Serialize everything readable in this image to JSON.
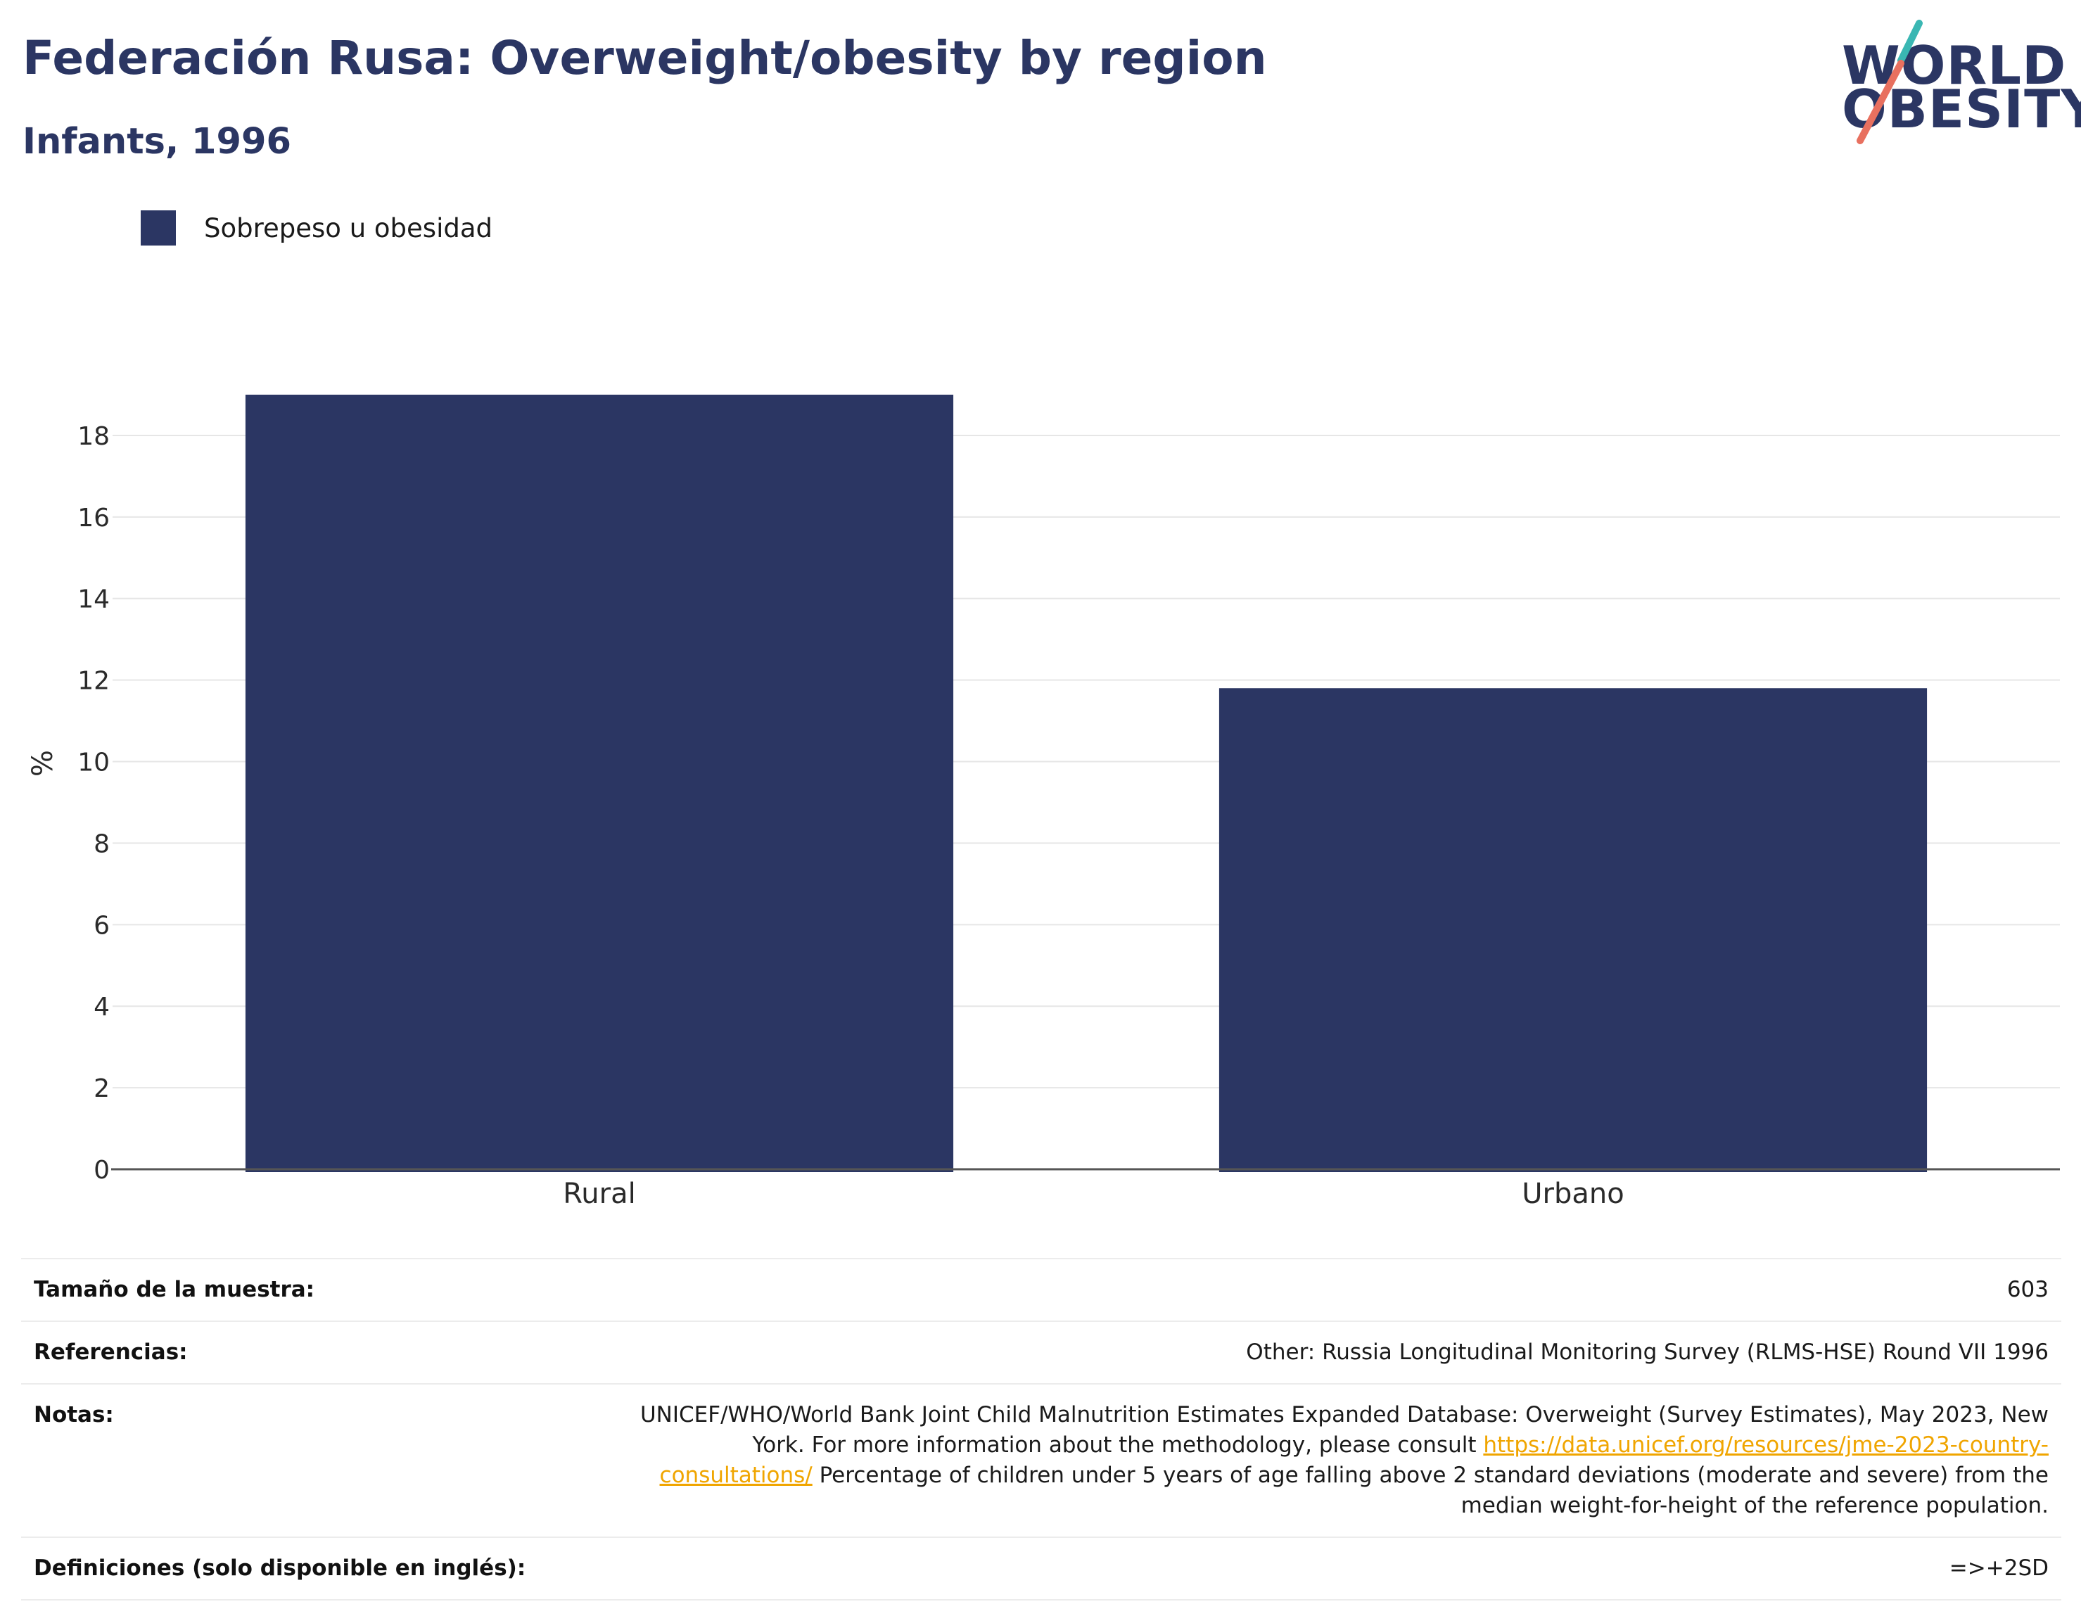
{
  "header": {
    "title": "Federación Rusa: Overweight/obesity by region",
    "subtitle": "Infants, 1996"
  },
  "logo": {
    "line1": "WORLD",
    "line2": "OBESITY",
    "colors": {
      "text": "#2b3663",
      "accent_teal": "#3ab7b3",
      "accent_coral": "#e8705f"
    }
  },
  "legend": {
    "items": [
      {
        "label": "Sobrepeso u obesidad",
        "color": "#2b3663"
      }
    ]
  },
  "chart_data": {
    "type": "bar",
    "title": "Federación Rusa: Overweight/obesity by region",
    "subtitle": "Infants, 1996",
    "categories": [
      "Rural",
      "Urbano"
    ],
    "series": [
      {
        "name": "Sobrepeso u obesidad",
        "values": [
          19.0,
          11.8
        ],
        "color": "#2b3663"
      }
    ],
    "xlabel": "",
    "ylabel": "%",
    "ylim": [
      0,
      19.0
    ],
    "yticks": [
      0,
      2,
      4,
      6,
      8,
      10,
      12,
      14,
      16,
      18
    ],
    "grid": true,
    "legend_position": "top-left"
  },
  "info": {
    "sample_size": {
      "label": "Tamaño de la muestra:",
      "value": "603"
    },
    "references": {
      "label": "Referencias:",
      "value": "Other: Russia Longitudinal Monitoring Survey (RLMS-HSE) Round VII 1996"
    },
    "notes": {
      "label": "Notas:",
      "text_before_link": "UNICEF/WHO/World Bank Joint Child Malnutrition Estimates Expanded Database: Overweight (Survey Estimates), May 2023, New York. For more information about the methodology, please consult ",
      "link": "https://data.unicef.org/resources/jme-2023-country-consultations/",
      "text_after_link": " Percentage of children under 5 years of age falling above 2 standard deviations (moderate and severe) from the median weight-for-height of the reference population."
    },
    "definitions": {
      "label": "Definiciones (solo disponible en inglés):",
      "value": "=>+2SD"
    }
  }
}
